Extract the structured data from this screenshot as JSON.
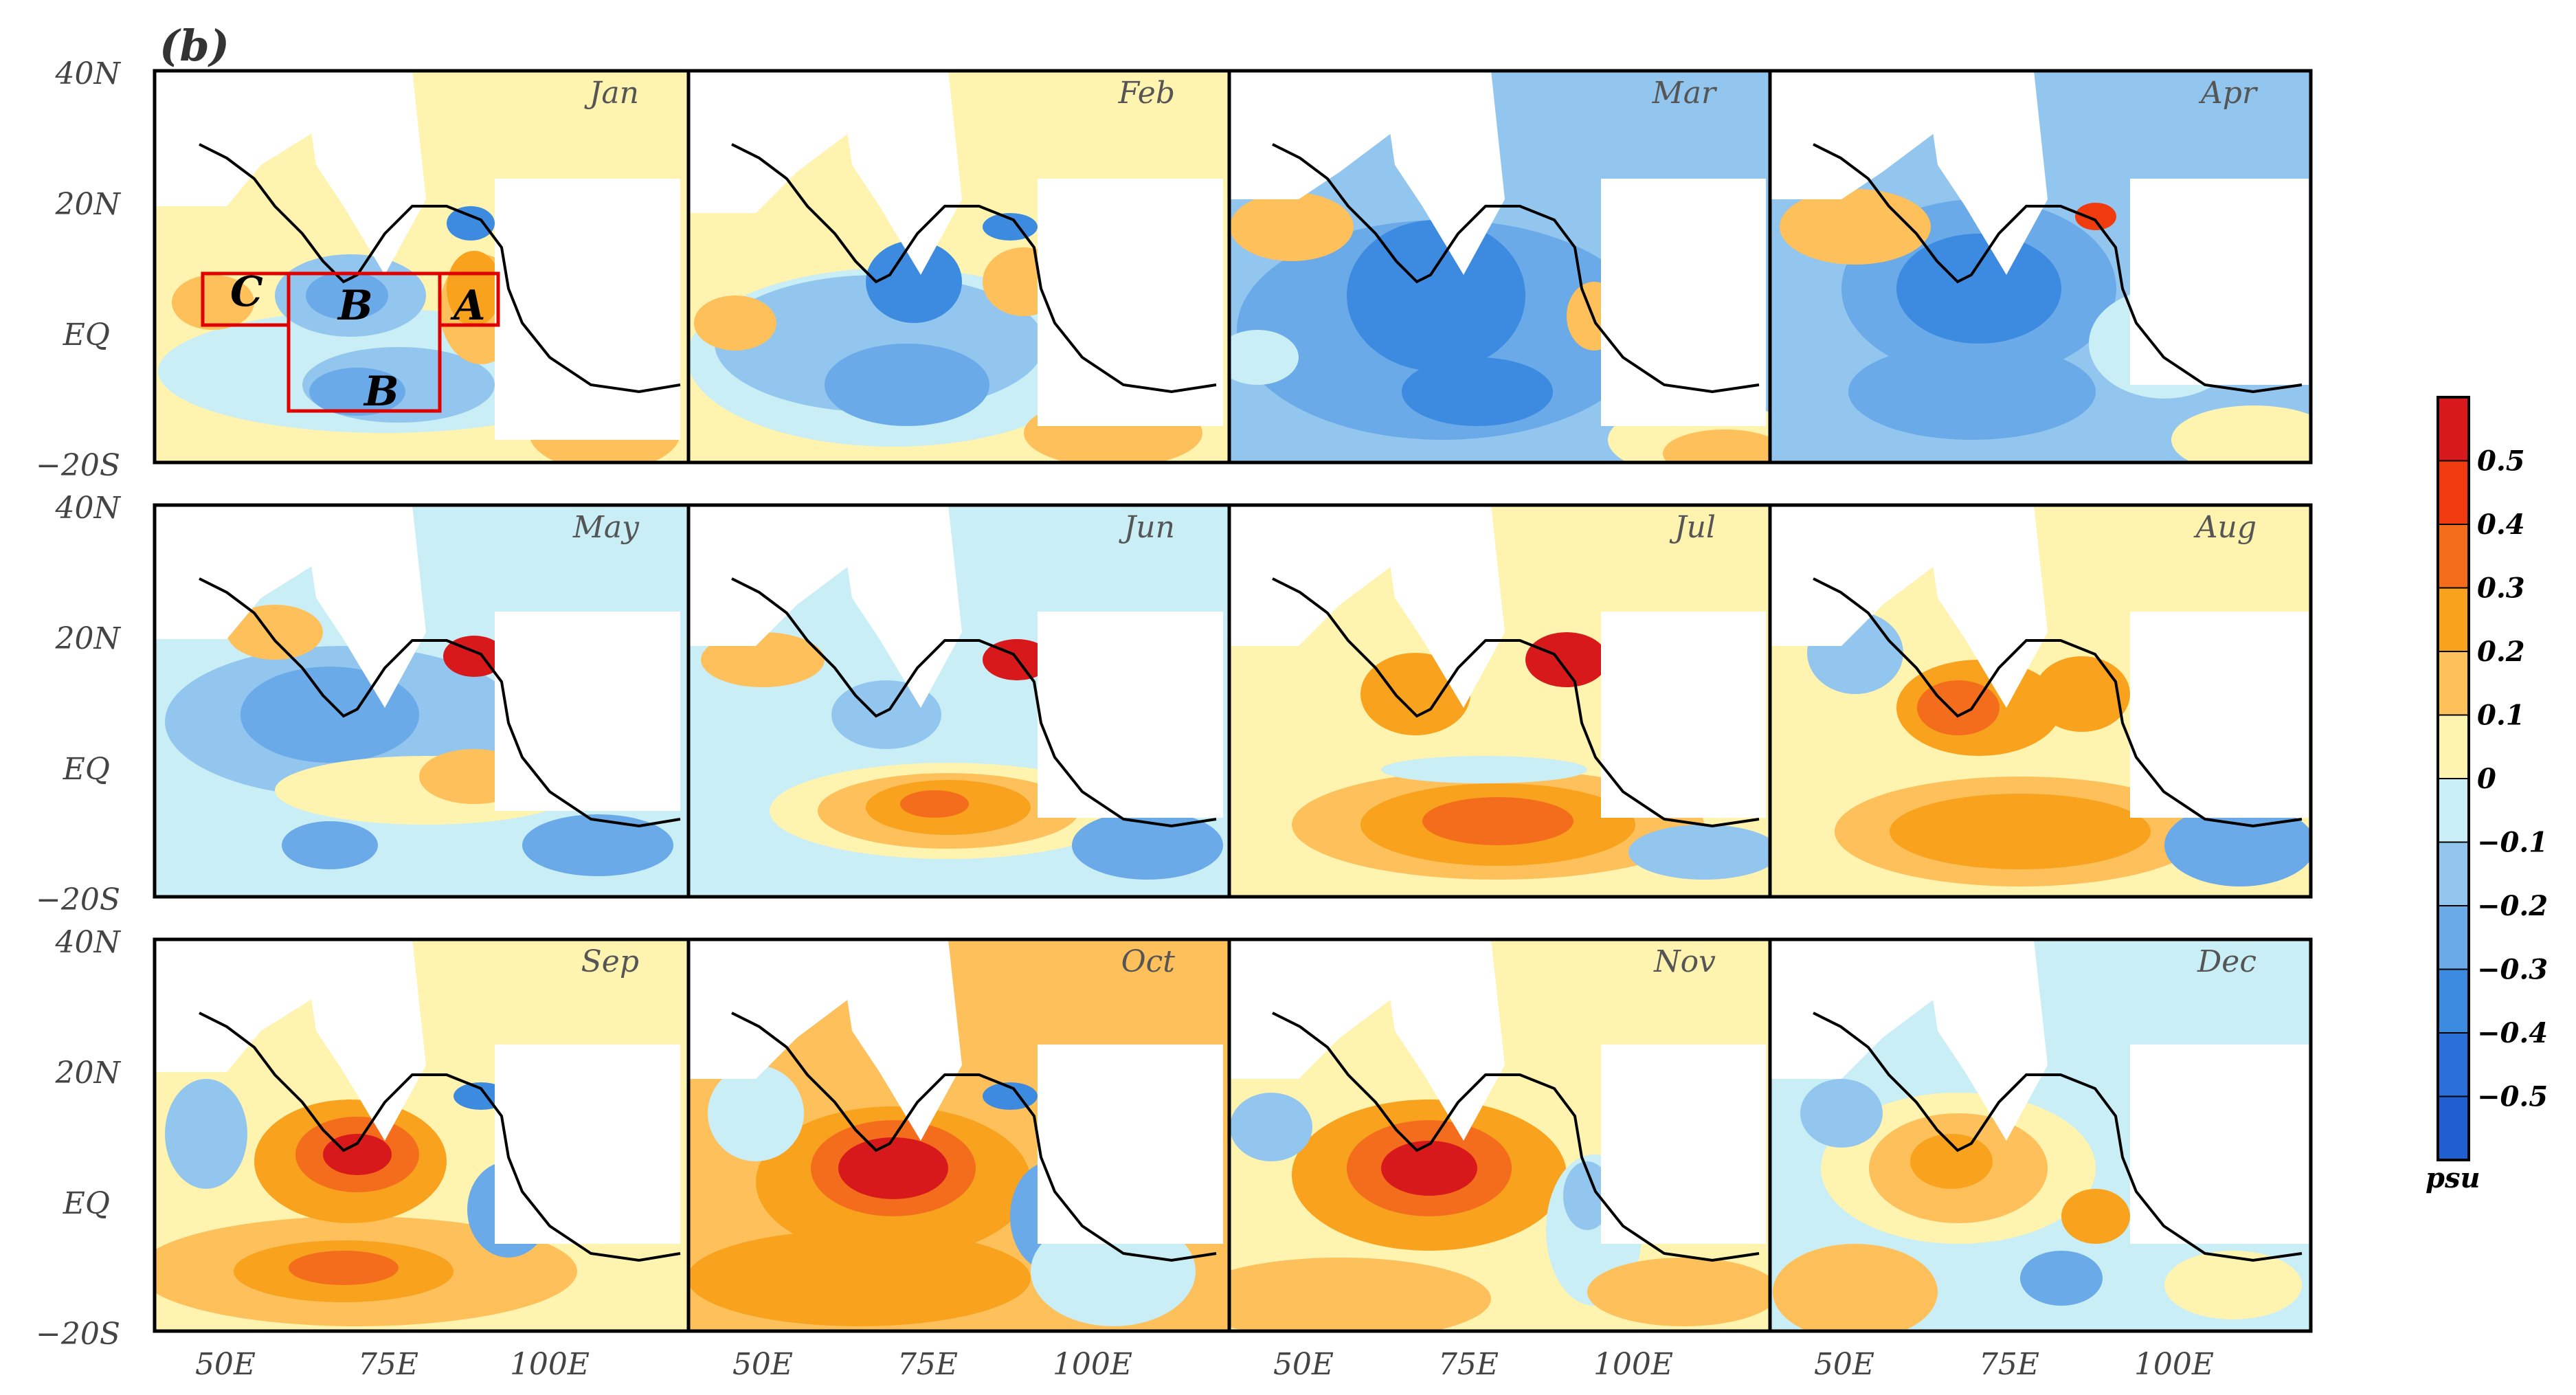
{
  "figure": {
    "panel_label": "(b)",
    "months": [
      "Jan",
      "Feb",
      "Mar",
      "Apr",
      "May",
      "Jun",
      "Jul",
      "Aug",
      "Sep",
      "Oct",
      "Nov",
      "Dec"
    ],
    "lat_ticks": [
      "40N",
      "20N",
      "EQ",
      "−20S"
    ],
    "lon_ticks": [
      "50E",
      "75E",
      "100E"
    ],
    "region_labels": [
      "C",
      "B",
      "A",
      "B"
    ],
    "colorbar": {
      "unit": "psu",
      "tick_labels": [
        "0.5",
        "0.4",
        "0.3",
        "0.2",
        "0.1",
        "0",
        "−0.1",
        "−0.2",
        "−0.3",
        "−0.4",
        "−0.5"
      ],
      "colors": [
        "#d7191c",
        "#f03b0f",
        "#f46d1c",
        "#f9a21e",
        "#fdc05a",
        "#fff3b0",
        "#c9eef5",
        "#93c6ee",
        "#6aaae8",
        "#3d8be0",
        "#2b6fd8",
        "#1f5fcf"
      ]
    }
  }
}
